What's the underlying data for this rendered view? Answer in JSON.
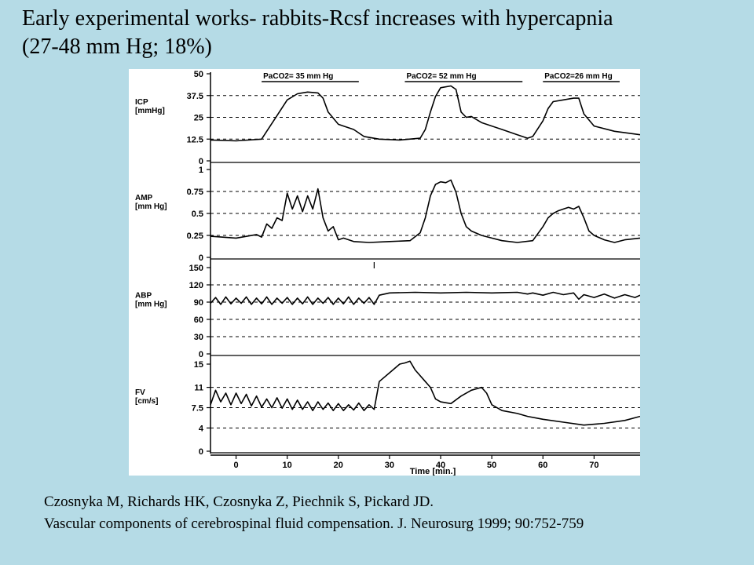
{
  "slide": {
    "title_line1": "Early experimental works- rabbits-Rcsf increases with hypercapnia",
    "title_line2": "(27-48 mm Hg; 18%)",
    "citation_line1": "Czosnyka M, Richards HK, Czosnyka Z, Piechnik S, Pickard JD.",
    "citation_line2": "Vascular components of cerebrospinal fluid compensation. J. Neurosurg 1999; 90:752-759"
  },
  "colors": {
    "background": "#b5dbe6",
    "trace": "#000000",
    "grid": "#000000"
  },
  "chart_data": {
    "type": "line",
    "x_axis": {
      "label": "Time  [min.]",
      "range": [
        -5,
        79
      ],
      "ticks": [
        0,
        10,
        20,
        30,
        40,
        50,
        60,
        70
      ]
    },
    "annotations": [
      {
        "text": "PaCO2= 35 mm Hg",
        "x_start": 5,
        "x_end": 24
      },
      {
        "text": "PaCO2= 52 mm Hg",
        "x_start": 33,
        "x_end": 56
      },
      {
        "text": "PaCO2=26 mm Hg",
        "x_start": 60,
        "x_end": 75
      }
    ],
    "panels": [
      {
        "name": "ICP",
        "ylabel_lines": [
          "ICP",
          "[mmHg]"
        ],
        "ylim": [
          0,
          50
        ],
        "ticks": [
          "0",
          "12.5",
          "25",
          "37.5",
          "50"
        ],
        "series": [
          [
            -5,
            12
          ],
          [
            0,
            11.5
          ],
          [
            5,
            12.5
          ],
          [
            6,
            17
          ],
          [
            8,
            26
          ],
          [
            10,
            35
          ],
          [
            12,
            38.5
          ],
          [
            14,
            39.5
          ],
          [
            16,
            39
          ],
          [
            17,
            36
          ],
          [
            18,
            28
          ],
          [
            20,
            21
          ],
          [
            21,
            20
          ],
          [
            23,
            18
          ],
          [
            25,
            14
          ],
          [
            28,
            12.5
          ],
          [
            32,
            12
          ],
          [
            36,
            13
          ],
          [
            37,
            18
          ],
          [
            38,
            28
          ],
          [
            39,
            37
          ],
          [
            40,
            42
          ],
          [
            42,
            43
          ],
          [
            43,
            41
          ],
          [
            44,
            28
          ],
          [
            45,
            25
          ],
          [
            46,
            25.5
          ],
          [
            48,
            22
          ],
          [
            52,
            18
          ],
          [
            55,
            15
          ],
          [
            57,
            13
          ],
          [
            58,
            14
          ],
          [
            60,
            23
          ],
          [
            61,
            30
          ],
          [
            62,
            34
          ],
          [
            64,
            35
          ],
          [
            66,
            36
          ],
          [
            67,
            36
          ],
          [
            68,
            27
          ],
          [
            70,
            20
          ],
          [
            74,
            17
          ],
          [
            79,
            15
          ]
        ]
      },
      {
        "name": "AMP",
        "ylabel_lines": [
          "AMP",
          "[mm Hg]"
        ],
        "ylim": [
          0,
          1
        ],
        "ticks": [
          "0",
          "0.25",
          "0.5",
          "0.75",
          "1"
        ],
        "series": [
          [
            -5,
            0.24
          ],
          [
            0,
            0.22
          ],
          [
            4,
            0.26
          ],
          [
            5,
            0.23
          ],
          [
            6,
            0.38
          ],
          [
            7,
            0.33
          ],
          [
            8,
            0.45
          ],
          [
            9,
            0.42
          ],
          [
            10,
            0.73
          ],
          [
            11,
            0.55
          ],
          [
            12,
            0.7
          ],
          [
            13,
            0.52
          ],
          [
            14,
            0.7
          ],
          [
            15,
            0.55
          ],
          [
            16,
            0.78
          ],
          [
            17,
            0.45
          ],
          [
            18,
            0.3
          ],
          [
            19,
            0.35
          ],
          [
            20,
            0.2
          ],
          [
            21,
            0.22
          ],
          [
            23,
            0.18
          ],
          [
            26,
            0.17
          ],
          [
            30,
            0.18
          ],
          [
            34,
            0.19
          ],
          [
            36,
            0.28
          ],
          [
            37,
            0.45
          ],
          [
            38,
            0.7
          ],
          [
            39,
            0.83
          ],
          [
            40,
            0.86
          ],
          [
            41,
            0.85
          ],
          [
            42,
            0.88
          ],
          [
            43,
            0.74
          ],
          [
            44,
            0.5
          ],
          [
            45,
            0.35
          ],
          [
            46,
            0.3
          ],
          [
            48,
            0.25
          ],
          [
            50,
            0.22
          ],
          [
            52,
            0.19
          ],
          [
            55,
            0.17
          ],
          [
            58,
            0.19
          ],
          [
            60,
            0.35
          ],
          [
            61,
            0.45
          ],
          [
            62,
            0.5
          ],
          [
            63,
            0.53
          ],
          [
            64,
            0.55
          ],
          [
            65,
            0.57
          ],
          [
            66,
            0.55
          ],
          [
            67,
            0.58
          ],
          [
            68,
            0.45
          ],
          [
            69,
            0.3
          ],
          [
            70,
            0.25
          ],
          [
            72,
            0.2
          ],
          [
            74,
            0.17
          ],
          [
            76,
            0.2
          ],
          [
            79,
            0.22
          ]
        ]
      },
      {
        "name": "ABP",
        "ylabel_lines": [
          "ABP",
          "[mm Hg]"
        ],
        "ylim": [
          0,
          150
        ],
        "ticks": [
          "0",
          "30",
          "60",
          "90",
          "120",
          "150"
        ],
        "series": [
          [
            -5,
            88
          ],
          [
            -4,
            98
          ],
          [
            -3,
            86
          ],
          [
            -2,
            99
          ],
          [
            -1,
            87
          ],
          [
            0,
            97
          ],
          [
            1,
            88
          ],
          [
            2,
            99
          ],
          [
            3,
            86
          ],
          [
            4,
            97
          ],
          [
            5,
            87
          ],
          [
            6,
            99
          ],
          [
            7,
            86
          ],
          [
            8,
            97
          ],
          [
            9,
            88
          ],
          [
            10,
            98
          ],
          [
            11,
            86
          ],
          [
            12,
            97
          ],
          [
            13,
            87
          ],
          [
            14,
            99
          ],
          [
            15,
            86
          ],
          [
            16,
            97
          ],
          [
            17,
            88
          ],
          [
            18,
            98
          ],
          [
            19,
            86
          ],
          [
            20,
            97
          ],
          [
            21,
            87
          ],
          [
            22,
            99
          ],
          [
            23,
            86
          ],
          [
            24,
            97
          ],
          [
            25,
            88
          ],
          [
            26,
            98
          ],
          [
            27,
            86
          ],
          [
            28,
            102
          ],
          [
            30,
            106
          ],
          [
            35,
            107
          ],
          [
            40,
            106
          ],
          [
            45,
            107
          ],
          [
            50,
            106
          ],
          [
            55,
            107
          ],
          [
            57,
            104
          ],
          [
            58,
            106
          ],
          [
            60,
            102
          ],
          [
            62,
            107
          ],
          [
            64,
            103
          ],
          [
            66,
            106
          ],
          [
            67,
            95
          ],
          [
            68,
            103
          ],
          [
            70,
            98
          ],
          [
            72,
            104
          ],
          [
            74,
            97
          ],
          [
            76,
            103
          ],
          [
            78,
            98
          ],
          [
            79,
            102
          ]
        ]
      },
      {
        "name": "FV",
        "ylabel_lines": [
          "FV",
          "[cm/s]"
        ],
        "ylim": [
          0,
          15
        ],
        "ticks": [
          "0",
          "4",
          "7.5",
          "11",
          "15"
        ],
        "series": [
          [
            -5,
            8
          ],
          [
            -4,
            10.5
          ],
          [
            -3,
            8.5
          ],
          [
            -2,
            10
          ],
          [
            -1,
            8
          ],
          [
            0,
            10
          ],
          [
            1,
            8.2
          ],
          [
            2,
            9.8
          ],
          [
            3,
            7.8
          ],
          [
            4,
            9.5
          ],
          [
            5,
            7.6
          ],
          [
            6,
            9
          ],
          [
            7,
            7.5
          ],
          [
            8,
            9.2
          ],
          [
            9,
            7.4
          ],
          [
            10,
            9
          ],
          [
            11,
            7.2
          ],
          [
            12,
            8.8
          ],
          [
            13,
            7.2
          ],
          [
            14,
            8.5
          ],
          [
            15,
            7
          ],
          [
            16,
            8.5
          ],
          [
            17,
            7.2
          ],
          [
            18,
            8.3
          ],
          [
            19,
            7
          ],
          [
            20,
            8.2
          ],
          [
            21,
            7
          ],
          [
            22,
            8
          ],
          [
            23,
            7.1
          ],
          [
            24,
            8.3
          ],
          [
            25,
            7
          ],
          [
            26,
            8
          ],
          [
            27,
            7.2
          ],
          [
            28,
            12
          ],
          [
            30,
            13.5
          ],
          [
            32,
            15
          ],
          [
            33,
            15.2
          ],
          [
            34,
            15.5
          ],
          [
            35,
            14
          ],
          [
            37,
            12
          ],
          [
            38,
            11
          ],
          [
            39,
            9
          ],
          [
            40,
            8.5
          ],
          [
            42,
            8.2
          ],
          [
            44,
            9.5
          ],
          [
            46,
            10.5
          ],
          [
            48,
            11
          ],
          [
            49,
            10
          ],
          [
            50,
            8
          ],
          [
            52,
            7
          ],
          [
            55,
            6.5
          ],
          [
            57,
            6
          ],
          [
            60,
            5.5
          ],
          [
            64,
            5
          ],
          [
            68,
            4.5
          ],
          [
            72,
            4.8
          ],
          [
            76,
            5.3
          ],
          [
            79,
            6
          ]
        ]
      }
    ]
  }
}
